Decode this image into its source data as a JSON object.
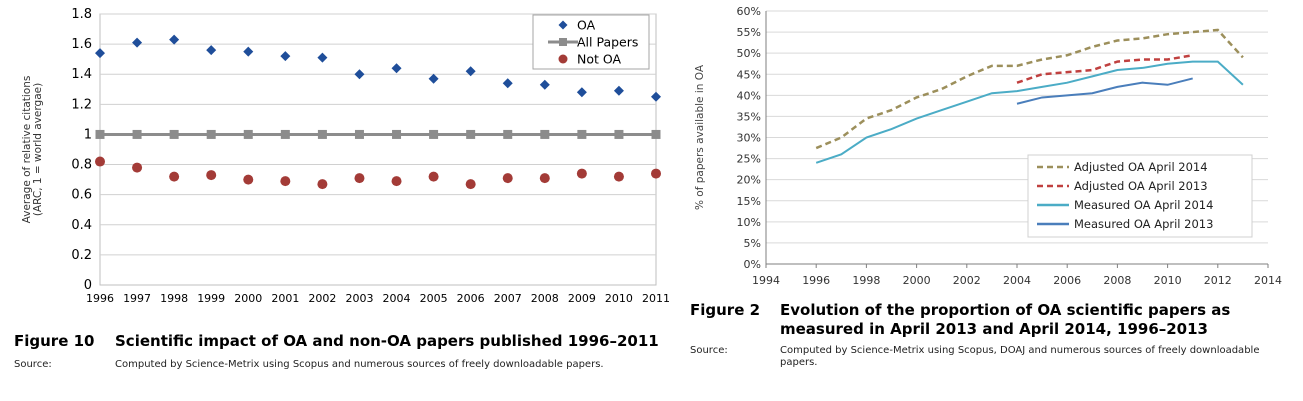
{
  "figures": [
    {
      "number": "Figure 10",
      "title": "Scientific impact of OA and non-OA papers published 1996–2011",
      "source_label": "Source:",
      "source_text": "Computed by Science-Metrix using Scopus and numerous sources of freely downloadable papers."
    },
    {
      "number": "Figure 2",
      "title": "Evolution of the proportion of OA scientific papers as measured in April 2013 and April 2014, 1996–2013",
      "source_label": "Source:",
      "source_text": "Computed by Science-Metrix using Scopus, DOAJ and numerous sources of freely downloadable papers."
    }
  ],
  "chart_data": [
    {
      "type": "scatter",
      "ylabel": "Average of relative citations (ARC, 1 = world avergae)",
      "ylim": [
        0,
        1.8
      ],
      "yticks": [
        "0",
        "0.2",
        "0.4",
        "0.6",
        "0.8",
        "1",
        "1.2",
        "1.4",
        "1.6",
        "1.8"
      ],
      "categories": [
        "1996",
        "1997",
        "1998",
        "1999",
        "2000",
        "2001",
        "2002",
        "2003",
        "2004",
        "2005",
        "2006",
        "2007",
        "2008",
        "2009",
        "2010",
        "2011"
      ],
      "grid": true,
      "legend_position": "top-right",
      "series": [
        {
          "name": "OA",
          "marker": "diamond",
          "color": "#1f4e9a",
          "values": [
            1.54,
            1.61,
            1.63,
            1.56,
            1.55,
            1.52,
            1.51,
            1.4,
            1.44,
            1.37,
            1.42,
            1.34,
            1.33,
            1.28,
            1.29,
            1.25
          ]
        },
        {
          "name": "All Papers",
          "marker": "square-line",
          "color": "#8c8c8c",
          "values": [
            1,
            1,
            1,
            1,
            1,
            1,
            1,
            1,
            1,
            1,
            1,
            1,
            1,
            1,
            1,
            1
          ]
        },
        {
          "name": "Not OA",
          "marker": "circle",
          "color": "#a33b37",
          "values": [
            0.82,
            0.78,
            0.72,
            0.73,
            0.7,
            0.69,
            0.67,
            0.71,
            0.69,
            0.72,
            0.67,
            0.71,
            0.71,
            0.74,
            0.72,
            0.74
          ]
        }
      ]
    },
    {
      "type": "line",
      "ylabel": "% of papers available in OA",
      "ylim": [
        0,
        60
      ],
      "xlim": [
        1994,
        2014
      ],
      "yticks": [
        "0%",
        "5%",
        "10%",
        "15%",
        "20%",
        "25%",
        "30%",
        "35%",
        "40%",
        "45%",
        "50%",
        "55%",
        "60%"
      ],
      "xticks": [
        "1994",
        "1996",
        "1998",
        "2000",
        "2002",
        "2004",
        "2006",
        "2008",
        "2010",
        "2012",
        "2014"
      ],
      "grid": true,
      "legend_position": "bottom-right",
      "series": [
        {
          "name": "Adjusted OA April 2014",
          "style": "dashed",
          "color": "#9c8f5b",
          "x": [
            1996,
            1997,
            1998,
            1999,
            2000,
            2001,
            2002,
            2003,
            2004,
            2005,
            2006,
            2007,
            2008,
            2009,
            2010,
            2011,
            2012,
            2013
          ],
          "y": [
            27.5,
            30,
            34.5,
            36.5,
            39.5,
            41.5,
            44.5,
            47,
            47,
            48.5,
            49.5,
            51.5,
            53,
            53.5,
            54.5,
            55,
            55.5,
            49
          ]
        },
        {
          "name": "Adjusted OA April 2013",
          "style": "dashed",
          "color": "#c0403f",
          "x": [
            2004,
            2005,
            2006,
            2007,
            2008,
            2009,
            2010,
            2011
          ],
          "y": [
            43,
            45,
            45.5,
            46,
            48,
            48.5,
            48.5,
            49.5
          ]
        },
        {
          "name": "Measured OA April 2014",
          "style": "solid",
          "color": "#4bacc6",
          "x": [
            1996,
            1997,
            1998,
            1999,
            2000,
            2001,
            2002,
            2003,
            2004,
            2005,
            2006,
            2007,
            2008,
            2009,
            2010,
            2011,
            2012,
            2013
          ],
          "y": [
            24,
            26,
            30,
            32,
            34.5,
            36.5,
            38.5,
            40.5,
            41,
            42,
            43,
            44.5,
            46,
            46.5,
            47.5,
            48,
            48,
            42.5
          ]
        },
        {
          "name": "Measured OA April 2013",
          "style": "solid",
          "color": "#4a7ebb",
          "x": [
            2004,
            2005,
            2006,
            2007,
            2008,
            2009,
            2010,
            2011
          ],
          "y": [
            38,
            39.5,
            40,
            40.5,
            42,
            43,
            42.5,
            44
          ]
        }
      ]
    }
  ]
}
